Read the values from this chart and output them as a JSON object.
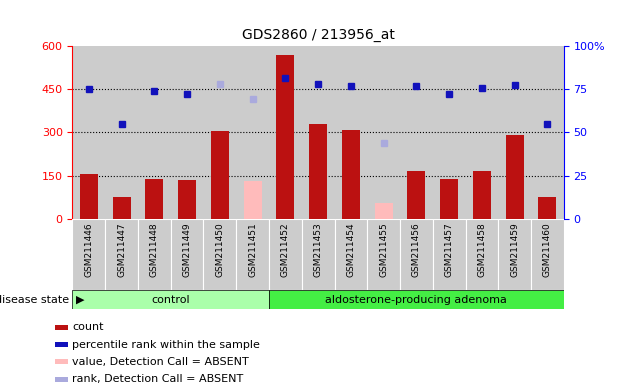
{
  "title": "GDS2860 / 213956_at",
  "samples": [
    "GSM211446",
    "GSM211447",
    "GSM211448",
    "GSM211449",
    "GSM211450",
    "GSM211451",
    "GSM211452",
    "GSM211453",
    "GSM211454",
    "GSM211455",
    "GSM211456",
    "GSM211457",
    "GSM211458",
    "GSM211459",
    "GSM211460"
  ],
  "counts": [
    155,
    75,
    140,
    135,
    305,
    null,
    570,
    330,
    310,
    null,
    165,
    140,
    165,
    290,
    75
  ],
  "counts_absent": [
    null,
    null,
    null,
    null,
    null,
    130,
    null,
    null,
    null,
    55,
    null,
    null,
    null,
    null,
    null
  ],
  "ranks": [
    450,
    330,
    445,
    435,
    null,
    null,
    490,
    470,
    460,
    null,
    460,
    435,
    455,
    465,
    330
  ],
  "ranks_absent": [
    null,
    null,
    null,
    null,
    470,
    415,
    null,
    null,
    null,
    265,
    null,
    null,
    null,
    null,
    null
  ],
  "control_count": 6,
  "group1_label": "control",
  "group2_label": "aldosterone-producing adenoma",
  "ylim_left": [
    0,
    600
  ],
  "ylim_right": [
    0,
    100
  ],
  "yticks_left": [
    0,
    150,
    300,
    450,
    600
  ],
  "yticks_right": [
    0,
    25,
    50,
    75,
    100
  ],
  "bar_color_red": "#bb1111",
  "bar_color_pink": "#ffbbbb",
  "dot_color_blue": "#1111bb",
  "dot_color_lightblue": "#aaaadd",
  "bg_color": "#cccccc",
  "group1_color": "#aaffaa",
  "group2_color": "#44ee44",
  "legend_items": [
    "count",
    "percentile rank within the sample",
    "value, Detection Call = ABSENT",
    "rank, Detection Call = ABSENT"
  ],
  "disease_state_label": "disease state"
}
